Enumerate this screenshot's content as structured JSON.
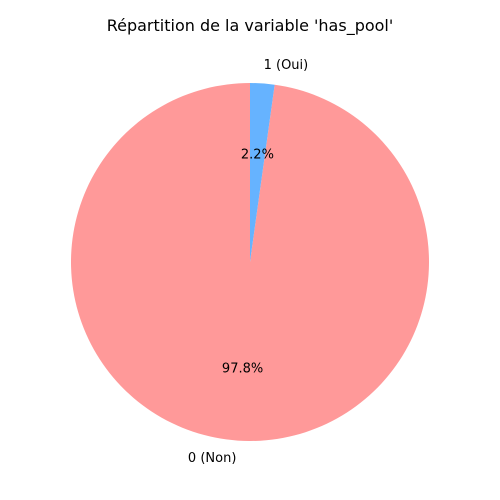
{
  "chart_data": {
    "type": "pie",
    "title": "Répartition de la variable 'has_pool'",
    "categories": [
      "0 (Non)",
      "1 (Oui)"
    ],
    "values": [
      97.8,
      2.2
    ],
    "labels": [
      "0 (Non)",
      "1 (Oui)"
    ],
    "percent_labels": [
      "97.8%",
      "2.2%"
    ],
    "colors": [
      "#ff9999",
      "#66b3ff"
    ],
    "start_angle_deg": 90,
    "direction": "counterclockwise",
    "legend": "none"
  }
}
